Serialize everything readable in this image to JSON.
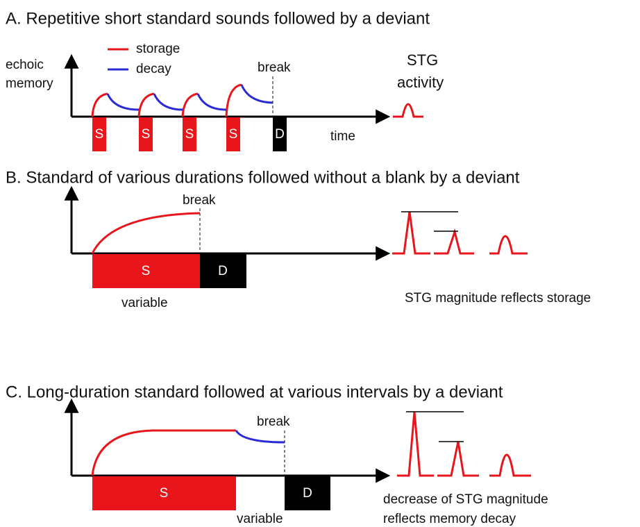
{
  "panels": [
    {
      "title": "A. Repetitive short standard sounds followed by a deviant",
      "y_axis_label": [
        "echoic",
        "memory"
      ],
      "legend": [
        "storage",
        "decay"
      ],
      "break_label": "break",
      "boxes": [
        "S",
        "S",
        "S",
        "S",
        "D"
      ],
      "x_axis_label": "time",
      "output_label": [
        "STG",
        "activity"
      ]
    },
    {
      "title": "B.  Standard of various durations followed without a blank by a deviant",
      "break_label": "break",
      "boxes": [
        "S",
        "D"
      ],
      "duration_label": "variable",
      "caption": [
        "STG magnitude reflects storage"
      ]
    },
    {
      "title": "C. Long-duration standard followed at various intervals by a deviant",
      "break_label": "break",
      "boxes": [
        "S",
        "D"
      ],
      "duration_label": "variable",
      "caption": [
        "decrease of STG magnitude",
        "reflects memory decay"
      ]
    }
  ]
}
